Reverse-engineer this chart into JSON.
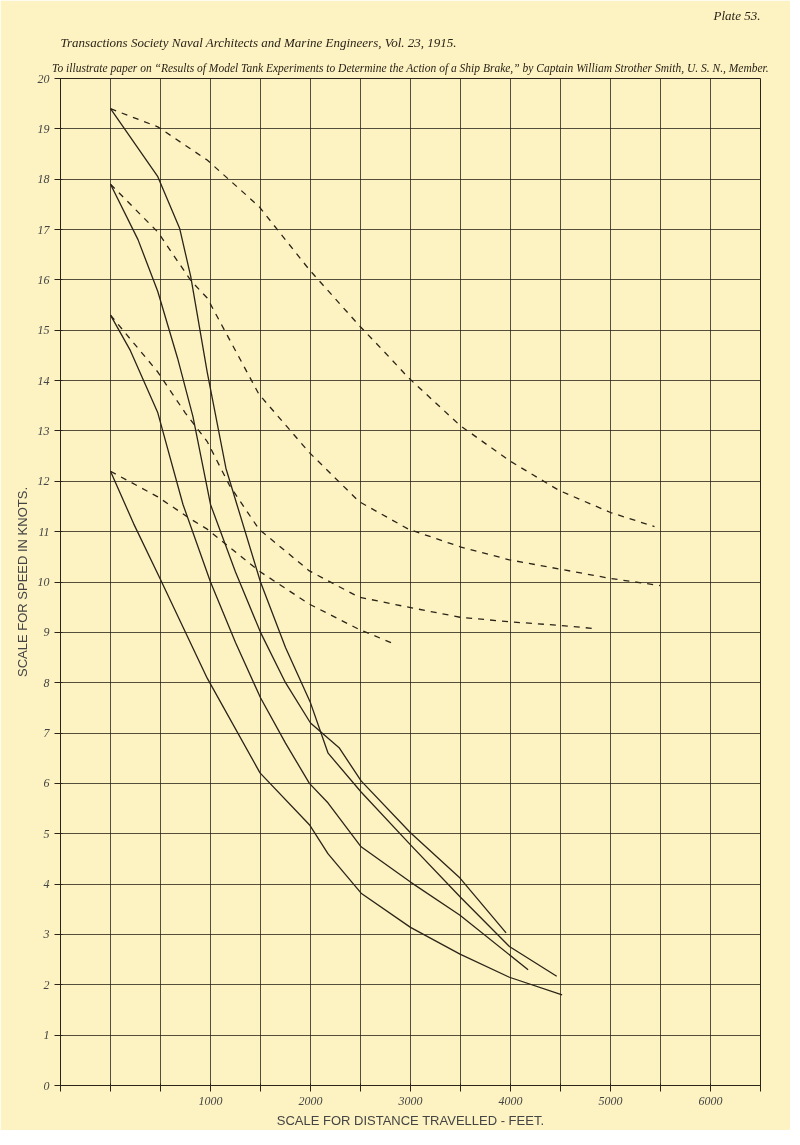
{
  "chart_data": {
    "type": "line",
    "title": "To illustrate paper on “Results of Model Tank Experiments to Determine the Action of a Ship Brake,” by Captain William Strother Smith, U. S. N., Member.",
    "annotations": [
      "Transactions Society Naval Architects and Marine Engineers, Vol. 23, 1915.",
      "Plate 53."
    ],
    "xlabel": "SCALE FOR DISTANCE TRAVELLED - FEET.",
    "ylabel": "SCALE FOR SPEED IN KNOTS.",
    "xlim": [
      -500,
      6500
    ],
    "ylim": [
      0,
      20
    ],
    "xticks": [
      {
        "value": -500,
        "label": null
      },
      {
        "value": 0,
        "label": null
      },
      {
        "value": 500,
        "label": null
      },
      1000,
      {
        "value": 1500,
        "label": null
      },
      2000,
      {
        "value": 2500,
        "label": null
      },
      3000,
      {
        "value": 3500,
        "label": null
      },
      4000,
      {
        "value": 4500,
        "label": null
      },
      5000,
      {
        "value": 5500,
        "label": null
      },
      6000,
      {
        "value": 6500,
        "label": null
      }
    ],
    "yticks": [
      0,
      1,
      2,
      3,
      4,
      5,
      6,
      7,
      8,
      9,
      10,
      11,
      12,
      13,
      14,
      15,
      16,
      17,
      18,
      19,
      20
    ],
    "grid": true,
    "series": [
      {
        "color": "#2b2418",
        "line_style": "dashed",
        "x": [
          0,
          473,
          967,
          1484,
          1989,
          2484,
          2725,
          2978,
          3495,
          3989,
          4484,
          5000,
          5440
        ],
        "values": [
          19.4,
          19.04,
          18.38,
          17.46,
          16.2,
          15.1,
          14.6,
          14.06,
          13.11,
          12.41,
          11.82,
          11.38,
          11.1
        ]
      },
      {
        "color": "#2b2418",
        "line_style": "dashed",
        "x": [
          0,
          473,
          802,
          967,
          1484,
          1989,
          2484,
          2978,
          3495,
          3989,
          4484,
          5000,
          5495
        ],
        "values": [
          17.9,
          16.95,
          15.99,
          15.64,
          13.73,
          12.57,
          11.6,
          11.05,
          10.7,
          10.44,
          10.26,
          10.07,
          9.93
        ]
      },
      {
        "color": "#2b2418",
        "line_style": "dashed",
        "x": [
          0,
          473,
          747,
          967,
          1187,
          1484,
          1989,
          2484,
          2978,
          3495,
          3989,
          4484,
          4813
        ],
        "values": [
          15.3,
          14.17,
          13.36,
          12.79,
          11.93,
          11.05,
          10.22,
          9.7,
          9.5,
          9.3,
          9.21,
          9.14,
          9.08
        ]
      },
      {
        "color": "#2b2418",
        "line_style": "dashed",
        "x": [
          0,
          473,
          802,
          967,
          1484,
          1989,
          2484,
          2813
        ],
        "values": [
          12.2,
          11.69,
          11.25,
          11.05,
          10.22,
          9.56,
          9.06,
          8.79
        ]
      },
      {
        "color": "#2b2418",
        "line_style": "solid",
        "x": [
          0,
          473,
          692,
          802,
          967,
          1154,
          1264,
          1500,
          1750,
          2000,
          2176,
          2506,
          3000,
          3495,
          3989,
          4462
        ],
        "values": [
          19.4,
          18.05,
          17.02,
          16.07,
          14.17,
          12.26,
          11.54,
          10.0,
          8.7,
          7.6,
          6.6,
          5.83,
          4.78,
          3.75,
          2.76,
          2.17
        ]
      },
      {
        "color": "#2b2418",
        "line_style": "solid",
        "x": [
          0,
          275,
          473,
          670,
          824,
          1000,
          1250,
          1500,
          1750,
          2000,
          2286,
          2506,
          3000,
          3495,
          3956
        ],
        "values": [
          17.9,
          16.8,
          15.77,
          14.45,
          13.29,
          11.54,
          10.2,
          9.0,
          8.0,
          7.2,
          6.71,
          6.05,
          5.02,
          4.12,
          3.03
        ]
      },
      {
        "color": "#2b2418",
        "line_style": "solid",
        "x": [
          0,
          198,
          473,
          725,
          1000,
          1250,
          1500,
          1750,
          1989,
          2176,
          2506,
          3000,
          3495,
          4176
        ],
        "values": [
          15.3,
          14.6,
          13.36,
          11.54,
          10.0,
          8.8,
          7.7,
          6.8,
          6.0,
          5.61,
          4.74,
          4.04,
          3.38,
          2.3
        ]
      },
      {
        "color": "#2b2418",
        "line_style": "solid",
        "x": [
          0,
          231,
          495,
          967,
          1495,
          1989,
          2176,
          2506,
          3000,
          3495,
          3989,
          4516
        ],
        "values": [
          12.2,
          11.16,
          10.07,
          8.09,
          6.21,
          5.18,
          4.6,
          3.82,
          3.14,
          2.61,
          2.15,
          1.8
        ]
      }
    ]
  }
}
